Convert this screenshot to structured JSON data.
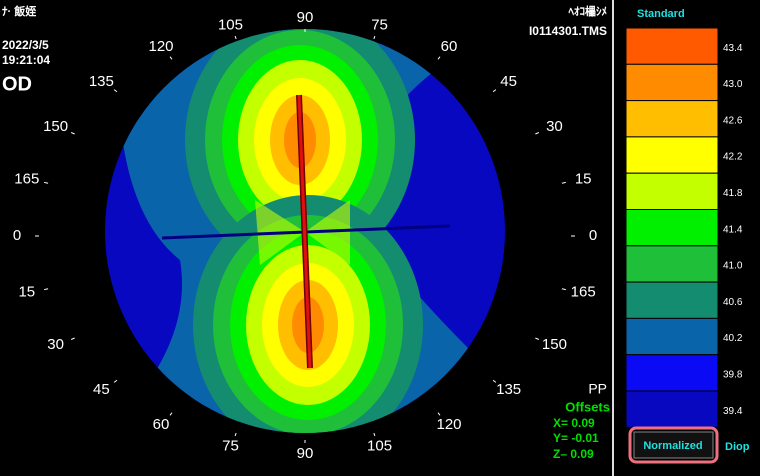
{
  "header": {
    "patient": "ﾅ· 飯姪",
    "date": "2022/3/5",
    "time": "19:21:04",
    "eye": "OD",
    "operator": "ﾍｵｺ櫑ｼﾒ",
    "file": "I0114301.TMS"
  },
  "axis_labels": [
    "0",
    "15",
    "30",
    "45",
    "60",
    "75",
    "90",
    "105",
    "120",
    "135",
    "150",
    "165",
    "0",
    "15",
    "30",
    "45",
    "60",
    "75",
    "90",
    "105",
    "120",
    "135",
    "150",
    "165"
  ],
  "info": {
    "mode": "PP",
    "offsets_title": "Offsets",
    "x": "X=  0.09",
    "y": "Y= -0.01",
    "z": "Z–  0.09"
  },
  "scale": {
    "title": "Standard",
    "unit": "Diop",
    "button": "Normalized",
    "steps": [
      {
        "label": "43.4",
        "color": "#ff5a00"
      },
      {
        "label": "43.0",
        "color": "#ff8c00"
      },
      {
        "label": "42.6",
        "color": "#ffbe00"
      },
      {
        "label": "42.2",
        "color": "#ffff00"
      },
      {
        "label": "41.8",
        "color": "#c4ff00"
      },
      {
        "label": "41.4",
        "color": "#00f000"
      },
      {
        "label": "41.0",
        "color": "#1fbf3a"
      },
      {
        "label": "40.6",
        "color": "#138c70"
      },
      {
        "label": "40.2",
        "color": "#0a64aa"
      },
      {
        "label": "39.8",
        "color": "#0a0af5"
      },
      {
        "label": "39.4",
        "color": "#0808c0"
      }
    ]
  }
}
